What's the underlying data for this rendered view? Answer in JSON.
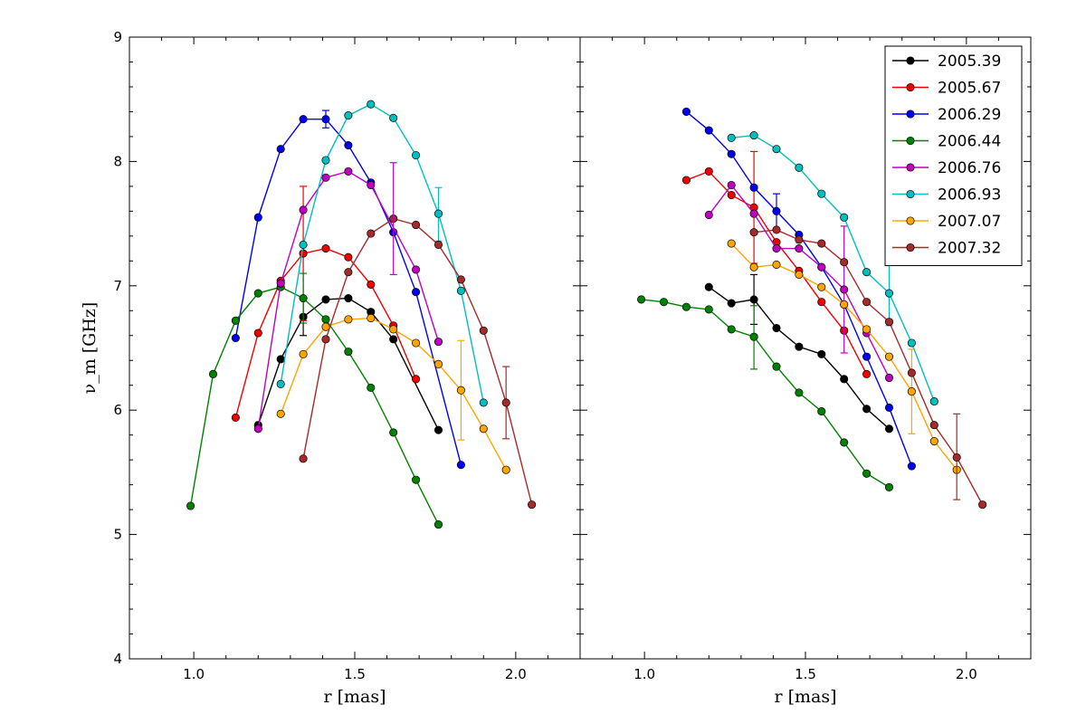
{
  "chart_data": [
    {
      "type": "line",
      "panel": "left",
      "xlabel": "r [mas]",
      "ylabel": "ν_m [GHz]",
      "xlim": [
        0.8,
        2.2
      ],
      "ylim": [
        4,
        9
      ],
      "x_ticks": [
        "1.0",
        "1.5",
        "2.0"
      ],
      "y_ticks": [
        "4",
        "5",
        "6",
        "7",
        "8",
        "9"
      ],
      "grid": false,
      "series": [
        {
          "name": "2005.39",
          "color": "#000000",
          "points": [
            [
              1.2,
              5.88
            ],
            [
              1.27,
              6.41
            ],
            [
              1.34,
              6.75
            ],
            [
              1.41,
              6.89
            ],
            [
              1.48,
              6.9
            ],
            [
              1.55,
              6.79
            ],
            [
              1.62,
              6.57
            ],
            [
              1.76,
              5.84
            ]
          ],
          "errorbars": [
            {
              "x": 1.34,
              "y": 6.75,
              "lo": 6.6,
              "hi": 6.9
            }
          ]
        },
        {
          "name": "2005.67",
          "color": "#ee0000",
          "points": [
            [
              1.13,
              5.94
            ],
            [
              1.2,
              6.62
            ],
            [
              1.27,
              7.04
            ],
            [
              1.34,
              7.26
            ],
            [
              1.41,
              7.3
            ],
            [
              1.48,
              7.23
            ],
            [
              1.55,
              7.01
            ],
            [
              1.62,
              6.68
            ],
            [
              1.69,
              6.25
            ]
          ],
          "errorbars": [
            {
              "x": 1.34,
              "y": 7.26,
              "lo": 6.72,
              "hi": 7.8
            }
          ]
        },
        {
          "name": "2006.29",
          "color": "#0000ee",
          "points": [
            [
              1.13,
              6.58
            ],
            [
              1.2,
              7.55
            ],
            [
              1.27,
              8.1
            ],
            [
              1.34,
              8.34
            ],
            [
              1.41,
              8.34
            ],
            [
              1.48,
              8.13
            ],
            [
              1.55,
              7.83
            ],
            [
              1.62,
              7.43
            ],
            [
              1.69,
              6.95
            ],
            [
              1.83,
              5.56
            ]
          ],
          "errorbars": [
            {
              "x": 1.41,
              "y": 8.34,
              "lo": 8.27,
              "hi": 8.41
            }
          ]
        },
        {
          "name": "2006.44",
          "color": "#008000",
          "points": [
            [
              0.99,
              5.23
            ],
            [
              1.06,
              6.29
            ],
            [
              1.13,
              6.72
            ],
            [
              1.2,
              6.94
            ],
            [
              1.27,
              6.99
            ],
            [
              1.34,
              6.9
            ],
            [
              1.41,
              6.73
            ],
            [
              1.48,
              6.47
            ],
            [
              1.55,
              6.18
            ],
            [
              1.62,
              5.82
            ],
            [
              1.69,
              5.44
            ],
            [
              1.76,
              5.08
            ]
          ],
          "errorbars": [
            {
              "x": 1.34,
              "y": 6.9,
              "lo": 6.7,
              "hi": 7.1
            }
          ]
        },
        {
          "name": "2006.76",
          "color": "#bf00bf",
          "points": [
            [
              1.2,
              5.85
            ],
            [
              1.27,
              7.02
            ],
            [
              1.34,
              7.61
            ],
            [
              1.41,
              7.87
            ],
            [
              1.48,
              7.92
            ],
            [
              1.55,
              7.81
            ],
            [
              1.69,
              7.13
            ],
            [
              1.76,
              6.55
            ]
          ],
          "errorbars": []
        },
        {
          "name": "2006.93",
          "color": "#00bfbf",
          "points": [
            [
              1.27,
              6.21
            ],
            [
              1.34,
              7.33
            ],
            [
              1.41,
              8.01
            ],
            [
              1.48,
              8.37
            ],
            [
              1.55,
              8.46
            ],
            [
              1.62,
              8.35
            ],
            [
              1.69,
              8.05
            ],
            [
              1.76,
              7.58
            ],
            [
              1.83,
              6.96
            ],
            [
              1.9,
              6.06
            ]
          ],
          "errorbars": [
            {
              "x": 1.76,
              "y": 7.58,
              "lo": 7.36,
              "hi": 7.79
            }
          ]
        },
        {
          "name": "2007.07",
          "color": "#ffa500",
          "points": [
            [
              1.27,
              5.97
            ],
            [
              1.34,
              6.45
            ],
            [
              1.41,
              6.67
            ],
            [
              1.48,
              6.73
            ],
            [
              1.55,
              6.74
            ],
            [
              1.62,
              6.65
            ],
            [
              1.69,
              6.54
            ],
            [
              1.76,
              6.37
            ],
            [
              1.83,
              6.16
            ],
            [
              1.9,
              5.85
            ],
            [
              1.97,
              5.52
            ]
          ],
          "errorbars": [
            {
              "x": 1.83,
              "y": 6.16,
              "lo": 5.76,
              "hi": 6.56
            }
          ]
        },
        {
          "name": "2007.32",
          "color": "#a52a2a",
          "points": [
            [
              1.34,
              5.61
            ],
            [
              1.41,
              6.57
            ],
            [
              1.48,
              7.11
            ],
            [
              1.55,
              7.42
            ],
            [
              1.62,
              7.54
            ],
            [
              1.69,
              7.49
            ],
            [
              1.76,
              7.33
            ],
            [
              1.83,
              7.05
            ],
            [
              1.9,
              6.64
            ],
            [
              1.97,
              6.06
            ],
            [
              2.05,
              5.24
            ]
          ],
          "errorbars": [
            {
              "x": 1.97,
              "y": 6.06,
              "lo": 5.77,
              "hi": 6.35
            }
          ]
        }
      ],
      "extra_errorbars": [
        {
          "x": 1.62,
          "y": 7.54,
          "lo": 7.09,
          "hi": 7.99,
          "color": "#bf00bf"
        }
      ]
    },
    {
      "type": "line",
      "panel": "right",
      "xlabel": "r [mas]",
      "xlim": [
        0.8,
        2.2
      ],
      "ylim": [
        4,
        9
      ],
      "x_ticks": [
        "1.0",
        "1.5",
        "2.0"
      ],
      "grid": false,
      "legend": "top-right",
      "series": [
        {
          "name": "2005.39",
          "color": "#000000",
          "points": [
            [
              1.2,
              6.99
            ],
            [
              1.27,
              6.86
            ],
            [
              1.34,
              6.89
            ],
            [
              1.41,
              6.66
            ],
            [
              1.48,
              6.51
            ],
            [
              1.55,
              6.45
            ],
            [
              1.62,
              6.25
            ],
            [
              1.69,
              6.01
            ],
            [
              1.76,
              5.85
            ]
          ],
          "errorbars": [
            {
              "x": 1.34,
              "y": 6.89,
              "lo": 6.69,
              "hi": 7.09
            }
          ]
        },
        {
          "name": "2005.67",
          "color": "#ee0000",
          "points": [
            [
              1.13,
              7.85
            ],
            [
              1.2,
              7.92
            ],
            [
              1.27,
              7.73
            ],
            [
              1.34,
              7.63
            ],
            [
              1.41,
              7.35
            ],
            [
              1.48,
              7.12
            ],
            [
              1.55,
              6.87
            ],
            [
              1.62,
              6.64
            ],
            [
              1.69,
              6.29
            ]
          ],
          "errorbars": [
            {
              "x": 1.34,
              "y": 7.63,
              "lo": 7.18,
              "hi": 8.08
            }
          ]
        },
        {
          "name": "2006.29",
          "color": "#0000ee",
          "points": [
            [
              1.13,
              8.4
            ],
            [
              1.2,
              8.25
            ],
            [
              1.27,
              8.06
            ],
            [
              1.34,
              7.79
            ],
            [
              1.41,
              7.6
            ],
            [
              1.48,
              7.41
            ],
            [
              1.55,
              7.15
            ],
            [
              1.62,
              6.85
            ],
            [
              1.69,
              6.43
            ],
            [
              1.76,
              6.02
            ],
            [
              1.83,
              5.55
            ]
          ],
          "errorbars": [
            {
              "x": 1.41,
              "y": 7.6,
              "lo": 7.46,
              "hi": 7.74
            }
          ]
        },
        {
          "name": "2006.44",
          "color": "#008000",
          "points": [
            [
              0.99,
              6.89
            ],
            [
              1.06,
              6.87
            ],
            [
              1.13,
              6.83
            ],
            [
              1.2,
              6.81
            ],
            [
              1.27,
              6.65
            ],
            [
              1.34,
              6.59
            ],
            [
              1.41,
              6.35
            ],
            [
              1.48,
              6.14
            ],
            [
              1.55,
              5.99
            ],
            [
              1.62,
              5.74
            ],
            [
              1.69,
              5.49
            ],
            [
              1.76,
              5.38
            ]
          ],
          "errorbars": [
            {
              "x": 1.34,
              "y": 6.59,
              "lo": 6.33,
              "hi": 6.84
            }
          ]
        },
        {
          "name": "2006.76",
          "color": "#bf00bf",
          "points": [
            [
              1.2,
              7.57
            ],
            [
              1.27,
              7.81
            ],
            [
              1.34,
              7.58
            ],
            [
              1.41,
              7.3
            ],
            [
              1.48,
              7.3
            ],
            [
              1.55,
              7.15
            ],
            [
              1.62,
              6.97
            ],
            [
              1.69,
              6.62
            ],
            [
              1.76,
              6.26
            ]
          ],
          "errorbars": [
            {
              "x": 1.62,
              "y": 6.97,
              "lo": 6.46,
              "hi": 7.48
            }
          ]
        },
        {
          "name": "2006.93",
          "color": "#00bfbf",
          "points": [
            [
              1.27,
              8.19
            ],
            [
              1.34,
              8.21
            ],
            [
              1.41,
              8.1
            ],
            [
              1.48,
              7.95
            ],
            [
              1.55,
              7.74
            ],
            [
              1.62,
              7.55
            ],
            [
              1.69,
              7.11
            ],
            [
              1.76,
              6.94
            ],
            [
              1.83,
              6.54
            ],
            [
              1.9,
              6.07
            ]
          ],
          "errorbars": [
            {
              "x": 1.76,
              "y": 6.94,
              "lo": 6.68,
              "hi": 7.21
            }
          ]
        },
        {
          "name": "2007.07",
          "color": "#ffa500",
          "points": [
            [
              1.27,
              7.34
            ],
            [
              1.34,
              7.15
            ],
            [
              1.41,
              7.17
            ],
            [
              1.48,
              7.09
            ],
            [
              1.55,
              6.99
            ],
            [
              1.62,
              6.85
            ],
            [
              1.69,
              6.65
            ],
            [
              1.76,
              6.43
            ],
            [
              1.83,
              6.15
            ],
            [
              1.9,
              5.75
            ],
            [
              1.97,
              5.52
            ]
          ],
          "errorbars": [
            {
              "x": 1.83,
              "y": 6.15,
              "lo": 5.81,
              "hi": 6.49
            }
          ]
        },
        {
          "name": "2007.32",
          "color": "#a52a2a",
          "points": [
            [
              1.34,
              7.43
            ],
            [
              1.41,
              7.45
            ],
            [
              1.48,
              7.37
            ],
            [
              1.55,
              7.34
            ],
            [
              1.62,
              7.19
            ],
            [
              1.69,
              6.87
            ],
            [
              1.76,
              6.71
            ],
            [
              1.83,
              6.3
            ],
            [
              1.9,
              5.88
            ],
            [
              1.97,
              5.62
            ],
            [
              2.05,
              5.24
            ]
          ],
          "errorbars": [
            {
              "x": 1.97,
              "y": 5.62,
              "lo": 5.28,
              "hi": 5.97
            }
          ]
        }
      ],
      "extra_errorbars": []
    }
  ]
}
